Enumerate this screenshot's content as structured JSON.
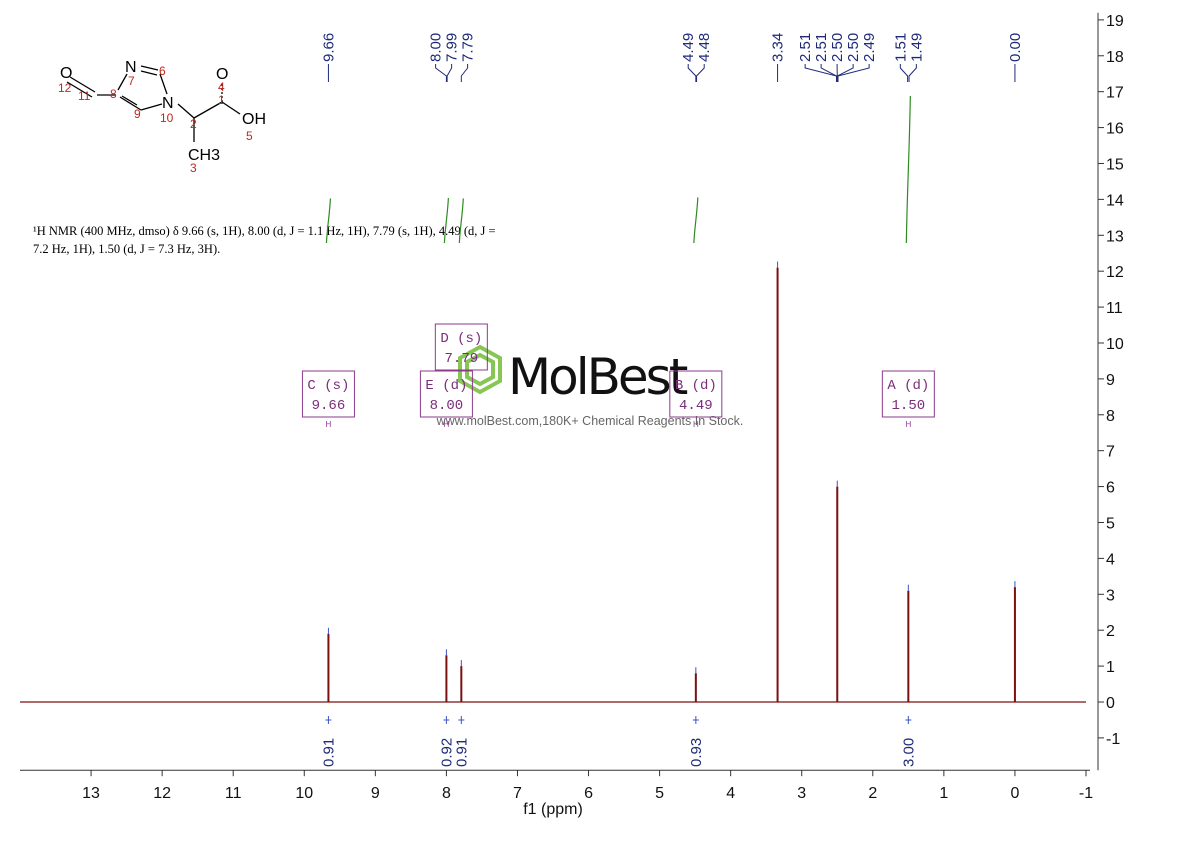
{
  "chart_data": {
    "type": "stem",
    "xlabel": "f1 (ppm)",
    "x": [
      9.66,
      8.0,
      7.79,
      4.49,
      3.34,
      2.5,
      1.5,
      0.0
    ],
    "values": [
      1.9,
      1.3,
      1.0,
      0.8,
      12.1,
      6.0,
      3.1,
      3.2
    ],
    "color": "#7a1010",
    "xlim": [
      14,
      -1
    ],
    "xticks": [
      13,
      12,
      11,
      10,
      9,
      8,
      7,
      6,
      5,
      4,
      3,
      2,
      1,
      0,
      -1
    ],
    "ylim": [
      -1.9,
      19.2
    ],
    "yticks": [
      -1,
      0,
      1,
      2,
      3,
      4,
      5,
      6,
      7,
      8,
      9,
      10,
      11,
      12,
      13,
      14,
      15,
      16,
      17,
      18,
      19
    ],
    "peak_labels": [
      9.66,
      {
        "value": 8,
        "label": "8.00"
      },
      7.99,
      7.79,
      4.49,
      4.48,
      3.34,
      2.51,
      2.51,
      {
        "value": 2.5,
        "label": "2.50"
      },
      {
        "value": 2.5,
        "label": "2.50"
      },
      2.49,
      1.51,
      1.49,
      {
        "value": 0,
        "label": "0.00"
      }
    ],
    "peak_label_color": "#1e2a78",
    "integrals": {
      "x": [
        9.66,
        8.0,
        7.79,
        4.49,
        1.5
      ],
      "values": [
        0.91,
        0.92,
        0.91,
        0.93,
        3
      ],
      "value_labels": [
        "0.91",
        "0.92",
        "0.91",
        "0.93",
        "3.00"
      ],
      "color": "#2e8b22"
    },
    "multiplets": {
      "labels": [
        "C (s)",
        "E (d)",
        "D (s)",
        "B (d)",
        "A (d)"
      ],
      "shifts": [
        9.66,
        8.0,
        7.79,
        4.49,
        1.5
      ],
      "shift_labels": [
        "9.66",
        "8.00",
        "7.79",
        "4.49",
        "1.50"
      ],
      "color": "#8b3a8b"
    }
  },
  "description": [
    "¹H NMR (400 MHz, dmso) δ 9.66 (s, 1H), 8.00 (d, J = 1.1 Hz, 1H), 7.79 (s, 1H), 4.49 (d, J =",
    "7.2 Hz, 1H), 1.50 (d, J = 7.3 Hz, 3H)."
  ],
  "structure": {
    "atoms": [
      "O",
      "N",
      "N",
      "O",
      "OH",
      "CH3"
    ],
    "numbers": [
      "12",
      "11",
      "8",
      "7",
      "6",
      "9",
      "10",
      "2",
      "1",
      "4",
      "5",
      "3"
    ]
  },
  "watermark": {
    "brand": "MolBest",
    "tagline": "www.molBest.com,180K+ Chemical Reagents In Stock."
  }
}
